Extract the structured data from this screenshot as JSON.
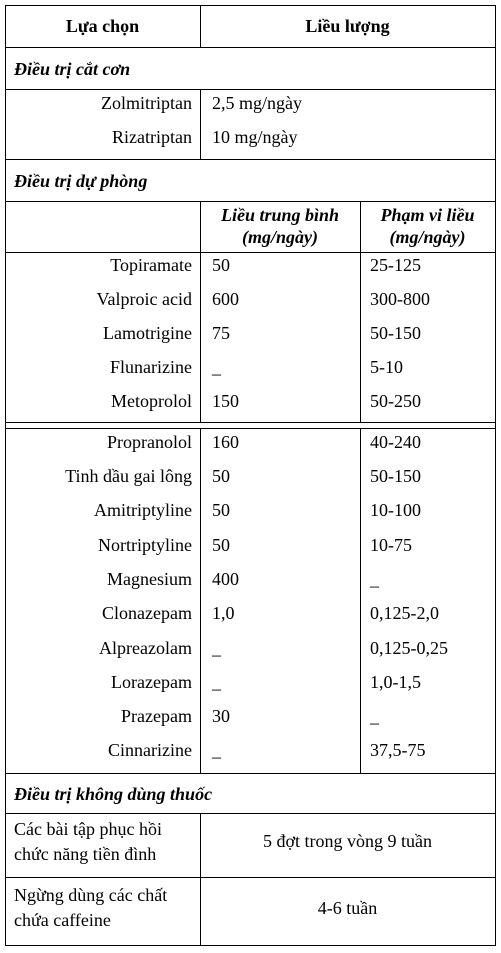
{
  "header": {
    "col1": "Lựa chọn",
    "col2": "Liều lượng"
  },
  "sec_acute": {
    "title": "Điều trị cắt cơn",
    "rows": [
      {
        "drug": "Zolmitriptan",
        "dose": "2,5 mg/ngày"
      },
      {
        "drug": "Rizatriptan",
        "dose": "10 mg/ngày"
      }
    ]
  },
  "sec_prev": {
    "title": "Điều trị dự phòng",
    "sub_mean_1": "Liều trung bình",
    "sub_mean_2": "(mg/ngày)",
    "sub_range_1": "Phạm vi liều",
    "sub_range_2": "(mg/ngày)",
    "rows_a": [
      {
        "drug": "Topiramate",
        "mean": "50",
        "range": "25-125"
      },
      {
        "drug": "Valproic acid",
        "mean": "600",
        "range": "300-800"
      },
      {
        "drug": "Lamotrigine",
        "mean": "75",
        "range": "50-150"
      },
      {
        "drug": "Flunarizine",
        "mean": "_",
        "range": "5-10"
      },
      {
        "drug": "Metoprolol",
        "mean": "150",
        "range": "50-250"
      }
    ],
    "rows_b": [
      {
        "drug": "Propranolol",
        "mean": "160",
        "range": "40-240"
      },
      {
        "drug": "Tinh dầu gai lông",
        "mean": "50",
        "range": "50-150"
      },
      {
        "drug": "Amitriptyline",
        "mean": "50",
        "range": "10-100"
      },
      {
        "drug": "Nortriptyline",
        "mean": "50",
        "range": "10-75"
      },
      {
        "drug": "Magnesium",
        "mean": "400",
        "range": "_"
      },
      {
        "drug": "Clonazepam",
        "mean": "1,0",
        "range": "0,125-2,0"
      },
      {
        "drug": "Alpreazolam",
        "mean": "_",
        "range": "0,125-0,25"
      },
      {
        "drug": "Lorazepam",
        "mean": "_",
        "range": "1,0-1,5"
      },
      {
        "drug": "Prazepam",
        "mean": "30",
        "range": "_"
      },
      {
        "drug": "Cinnarizine",
        "mean": "_",
        "range": "37,5-75"
      }
    ]
  },
  "sec_nondrug": {
    "title": "Điều trị không dùng thuốc",
    "rows": [
      {
        "option_1": "Các bài tập phục hồi",
        "option_2": "chức năng tiền đình",
        "dose": "5 đợt trong vòng 9 tuần"
      },
      {
        "option_1": "Ngừng dùng các chất",
        "option_2": "chứa caffeine",
        "dose": "4-6 tuần"
      }
    ]
  }
}
